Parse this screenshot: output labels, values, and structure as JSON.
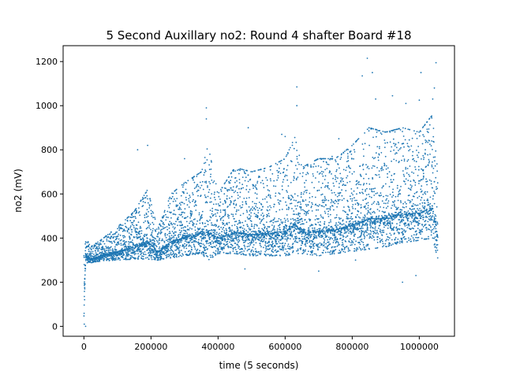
{
  "chart_data": {
    "type": "scatter",
    "title": "5 Second Auxillary no2: Round 4 shafter Board #18",
    "xlabel": "time (5 seconds)",
    "ylabel": "no2 (mV)",
    "xlim": [
      -62000,
      1105000
    ],
    "ylim": [
      -45,
      1272
    ],
    "xticks": [
      0,
      200000,
      400000,
      600000,
      800000,
      1000000
    ],
    "xtick_labels": [
      "0",
      "200000",
      "400000",
      "600000",
      "800000",
      "1000000"
    ],
    "yticks": [
      0,
      200,
      400,
      600,
      800,
      1000,
      1200
    ],
    "ytick_labels": [
      "0",
      "200",
      "400",
      "600",
      "800",
      "1000",
      "1200"
    ],
    "grid": false,
    "legend": "none",
    "marker_color": "#1f77b4",
    "series": [
      {
        "description": "dense no2 readings; envelope points as [x, lower, upper]",
        "envelope": [
          [
            0,
            5,
            320
          ],
          [
            5000,
            290,
            405
          ],
          [
            20000,
            285,
            360
          ],
          [
            50000,
            295,
            390
          ],
          [
            100000,
            300,
            450
          ],
          [
            150000,
            305,
            520
          ],
          [
            190000,
            305,
            620
          ],
          [
            220000,
            300,
            440
          ],
          [
            260000,
            310,
            600
          ],
          [
            300000,
            320,
            650
          ],
          [
            350000,
            330,
            700
          ],
          [
            370000,
            300,
            820
          ],
          [
            400000,
            330,
            600
          ],
          [
            450000,
            330,
            720
          ],
          [
            500000,
            320,
            700
          ],
          [
            550000,
            320,
            720
          ],
          [
            600000,
            320,
            760
          ],
          [
            630000,
            330,
            860
          ],
          [
            650000,
            330,
            720
          ],
          [
            700000,
            320,
            760
          ],
          [
            750000,
            330,
            760
          ],
          [
            800000,
            340,
            820
          ],
          [
            850000,
            350,
            900
          ],
          [
            900000,
            360,
            880
          ],
          [
            950000,
            380,
            900
          ],
          [
            1000000,
            390,
            880
          ],
          [
            1040000,
            400,
            960
          ],
          [
            1055000,
            305,
            700
          ]
        ],
        "spikes": [
          [
            5000,
            0
          ],
          [
            1000,
            10
          ],
          [
            160000,
            800
          ],
          [
            190000,
            820
          ],
          [
            300000,
            760
          ],
          [
            365000,
            990
          ],
          [
            365000,
            940
          ],
          [
            490000,
            900
          ],
          [
            590000,
            870
          ],
          [
            600000,
            860
          ],
          [
            635000,
            1085
          ],
          [
            635000,
            1000
          ],
          [
            740000,
            770
          ],
          [
            760000,
            850
          ],
          [
            830000,
            1135
          ],
          [
            845000,
            1215
          ],
          [
            860000,
            1150
          ],
          [
            870000,
            1030
          ],
          [
            920000,
            1045
          ],
          [
            960000,
            1010
          ],
          [
            1000000,
            1025
          ],
          [
            1005000,
            1150
          ],
          [
            1050000,
            1195
          ],
          [
            1045000,
            1080
          ],
          [
            1040000,
            1030
          ],
          [
            420000,
            570
          ],
          [
            480000,
            260
          ],
          [
            700000,
            250
          ],
          [
            810000,
            300
          ],
          [
            950000,
            200
          ],
          [
            990000,
            230
          ]
        ]
      }
    ]
  }
}
